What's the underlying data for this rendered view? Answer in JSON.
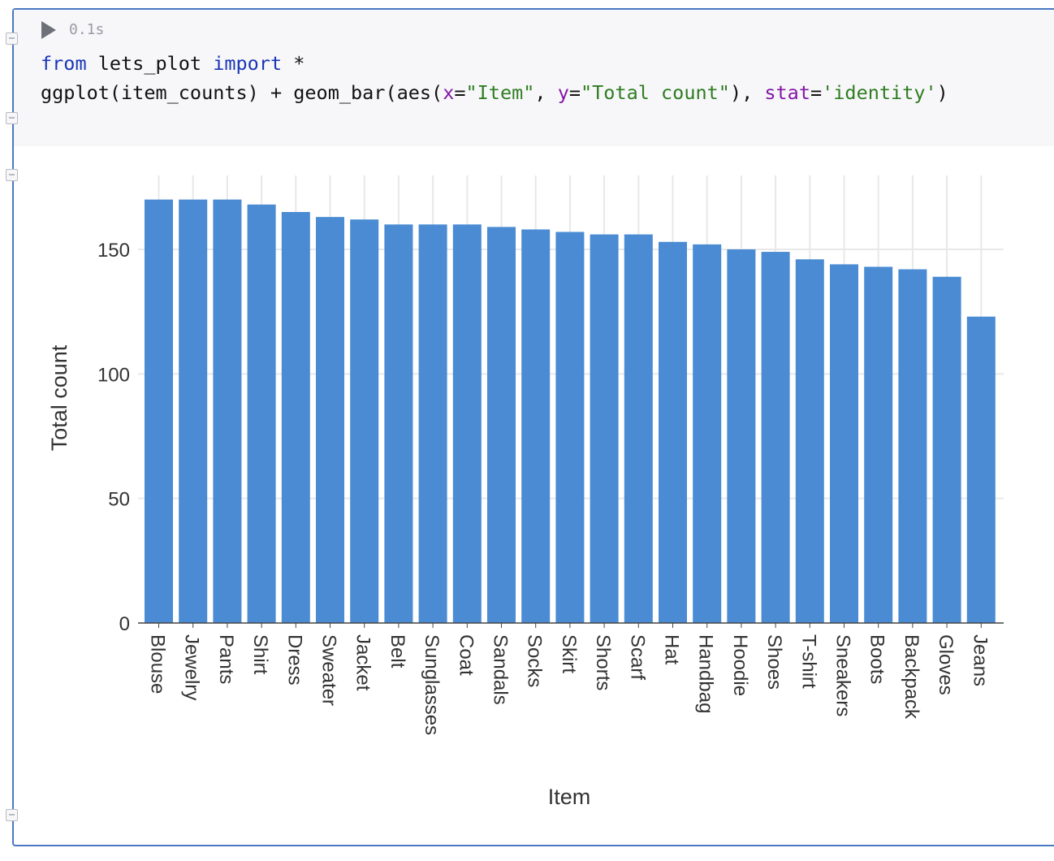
{
  "cell": {
    "exec_time": "0.1s",
    "code_line1": {
      "kw1": "from",
      "mod": " lets_plot ",
      "kw2": "import",
      "rest": " *"
    },
    "code_line2": {
      "p1": "ggplot(item_counts) + geom_bar(aes(",
      "x": "x",
      "eq1": "=",
      "xs": "\"Item\"",
      "sep": ", ",
      "y": "y",
      "eq2": "=",
      "ys": "\"Total count\"",
      "p2": "), ",
      "stat": "stat",
      "eq3": "=",
      "stats": "'identity'",
      "p3": ")"
    }
  },
  "colors": {
    "bar": "#4a8bd3",
    "grid": "#e8e8e8",
    "accent": "#4a78c2"
  },
  "chart_data": {
    "type": "bar",
    "categories": [
      "Blouse",
      "Jewelry",
      "Pants",
      "Shirt",
      "Dress",
      "Sweater",
      "Jacket",
      "Belt",
      "Sunglasses",
      "Coat",
      "Sandals",
      "Socks",
      "Skirt",
      "Shorts",
      "Scarf",
      "Hat",
      "Handbag",
      "Hoodie",
      "Shoes",
      "T-shirt",
      "Sneakers",
      "Boots",
      "Backpack",
      "Gloves",
      "Jeans"
    ],
    "values": [
      170,
      170,
      170,
      168,
      165,
      163,
      162,
      160,
      160,
      160,
      159,
      158,
      157,
      156,
      156,
      153,
      152,
      150,
      149,
      146,
      144,
      143,
      142,
      139,
      123
    ],
    "xlabel": "Item",
    "ylabel": "Total count",
    "yticks": [
      "0",
      "50",
      "100",
      "150"
    ],
    "ylim": [
      0,
      180
    ],
    "grid": true
  }
}
